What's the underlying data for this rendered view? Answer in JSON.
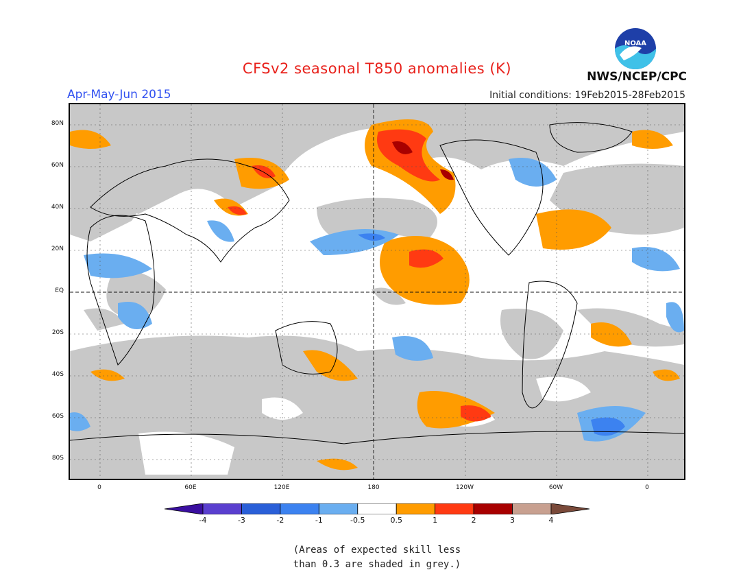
{
  "header": {
    "title": "CFSv2 seasonal T850 anomalies (K)",
    "period": "Apr-May-Jun 2015",
    "initial_conditions": "Initial conditions: 19Feb2015-28Feb2015",
    "agency": "NWS/NCEP/CPC",
    "logo_text": "NOAA"
  },
  "map": {
    "lat_labels": [
      "80N",
      "60N",
      "40N",
      "20N",
      "EQ",
      "20S",
      "40S",
      "60S",
      "80S"
    ],
    "lon_labels": [
      "0",
      "60E",
      "120E",
      "180",
      "120W",
      "60W",
      "0"
    ],
    "colors": {
      "skill_grey": "#c8c8c8",
      "orange": "#ff9c00",
      "red_orange": "#ff3a12",
      "dark_red": "#a80000",
      "light_blue": "#6aaef0",
      "medium_blue": "#3c82f0"
    }
  },
  "legend": {
    "tick_labels": [
      "-4",
      "-3",
      "-2",
      "-1",
      "-0.5",
      "0.5",
      "1",
      "2",
      "3",
      "4"
    ],
    "colors": [
      "#3a0fa0",
      "#5a3fcf",
      "#2a5fd8",
      "#3c82f0",
      "#6aaef0",
      "#ffffff",
      "#ff9c00",
      "#ff3a12",
      "#a80000",
      "#c8a090",
      "#7a4a3a"
    ]
  },
  "note": {
    "line1": "(Areas of expected skill less",
    "line2": "than 0.3 are shaded in grey.)"
  }
}
